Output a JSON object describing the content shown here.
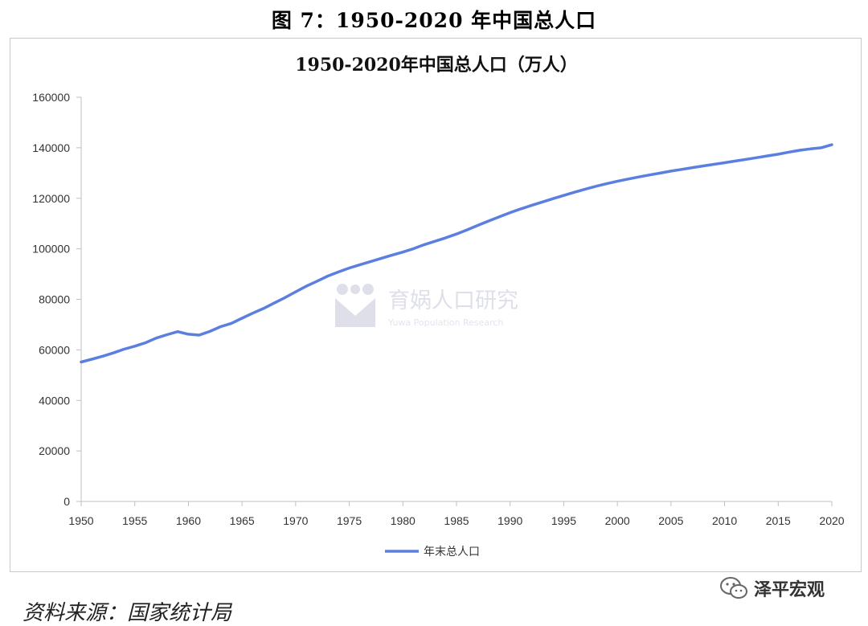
{
  "figure_title": "图 7：1950-2020 年中国总人口",
  "source": "资料来源：国家统计局",
  "brand": "泽平宏观",
  "watermark": {
    "main": "育娲人口研究",
    "sub": "Yuwa Population Research"
  },
  "colors": {
    "series": "#5b7fe0",
    "axis": "#bfbfbf",
    "watermark": "#8a8fb0"
  },
  "chart_data": {
    "type": "line",
    "title": "1950-2020年中国总人口（万人）",
    "xlabel": "",
    "ylabel": "",
    "xlim": [
      1950,
      2020
    ],
    "ylim": [
      0,
      160000
    ],
    "yticks": [
      0,
      20000,
      40000,
      60000,
      80000,
      100000,
      120000,
      140000,
      160000
    ],
    "xticks": [
      1950,
      1955,
      1960,
      1965,
      1970,
      1975,
      1980,
      1985,
      1990,
      1995,
      2000,
      2005,
      2010,
      2015,
      2020
    ],
    "grid": false,
    "legend": "bottom",
    "series": [
      {
        "name": "年末总人口",
        "x": [
          1950,
          1951,
          1952,
          1953,
          1954,
          1955,
          1956,
          1957,
          1958,
          1959,
          1960,
          1961,
          1962,
          1963,
          1964,
          1965,
          1966,
          1967,
          1968,
          1969,
          1970,
          1971,
          1972,
          1973,
          1974,
          1975,
          1976,
          1977,
          1978,
          1979,
          1980,
          1981,
          1982,
          1983,
          1984,
          1985,
          1986,
          1987,
          1988,
          1989,
          1990,
          1991,
          1992,
          1993,
          1994,
          1995,
          1996,
          1997,
          1998,
          1999,
          2000,
          2001,
          2002,
          2003,
          2004,
          2005,
          2006,
          2007,
          2008,
          2009,
          2010,
          2011,
          2012,
          2013,
          2014,
          2015,
          2016,
          2017,
          2018,
          2019,
          2020
        ],
        "values": [
          55196,
          56300,
          57482,
          58796,
          60266,
          61465,
          62828,
          64653,
          65994,
          67207,
          66207,
          65859,
          67296,
          69172,
          70499,
          72538,
          74542,
          76368,
          78534,
          80671,
          82992,
          85229,
          87177,
          89211,
          90859,
          92420,
          93717,
          94974,
          96259,
          97542,
          98705,
          100072,
          101654,
          103008,
          104357,
          105851,
          107507,
          109300,
          111026,
          112704,
          114333,
          115823,
          117171,
          118517,
          119850,
          121121,
          122389,
          123626,
          124761,
          125786,
          126743,
          127627,
          128453,
          129227,
          129988,
          130756,
          131448,
          132129,
          132802,
          133450,
          134091,
          134735,
          135404,
          136072,
          136782,
          137462,
          138271,
          139008,
          139538,
          140005,
          141212
        ]
      }
    ]
  }
}
